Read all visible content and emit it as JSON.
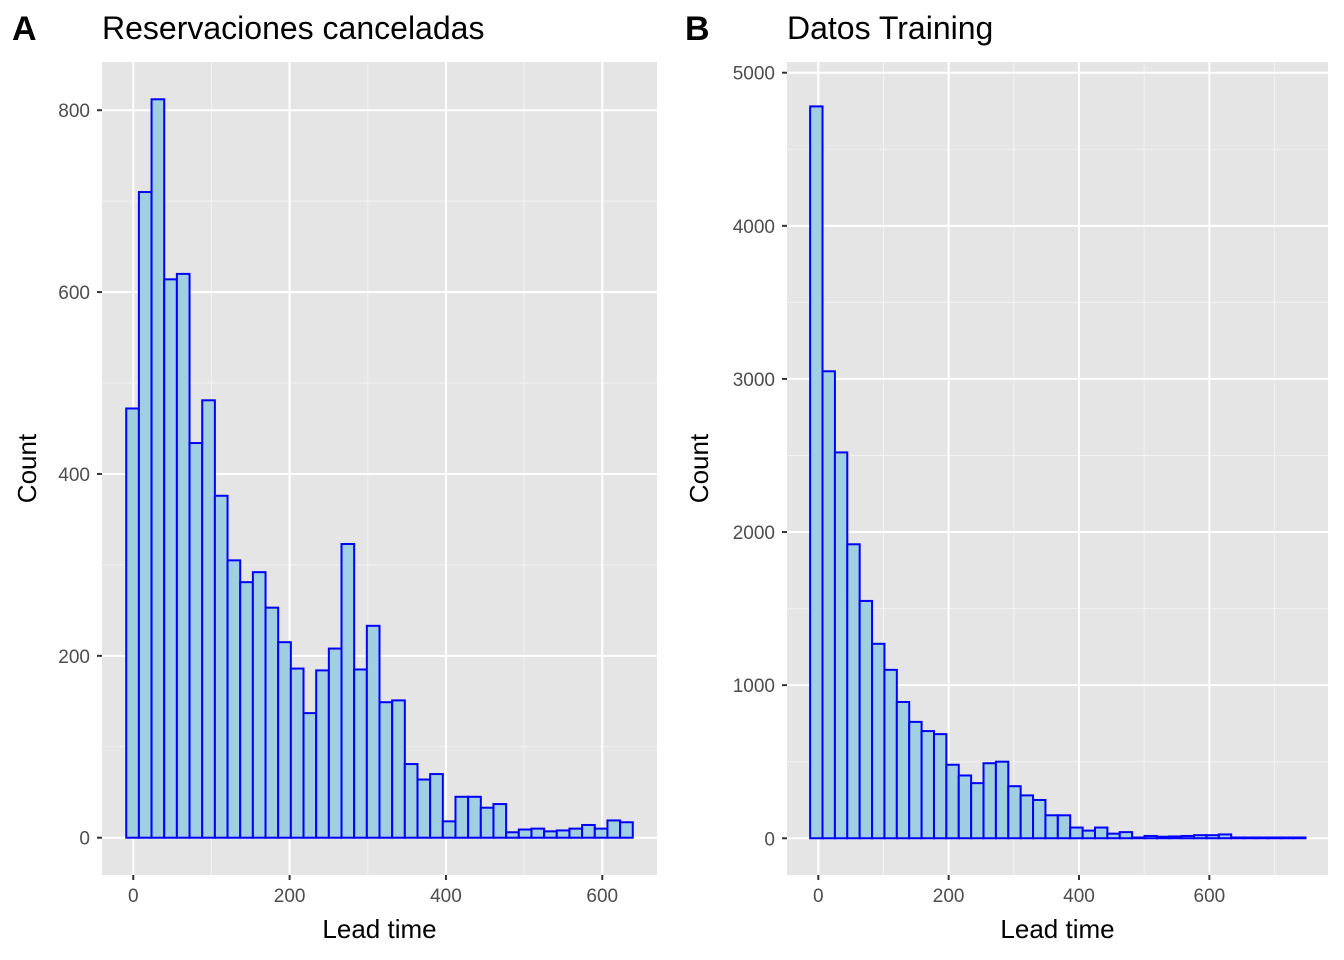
{
  "chart_data": [
    {
      "type": "bar",
      "tag": "A",
      "title": "Reservaciones canceladas",
      "xlabel": "Lead time",
      "ylabel": "Count",
      "xlim": [
        -40,
        670
      ],
      "ylim": [
        -41,
        853
      ],
      "xticks": [
        0,
        200,
        400,
        600
      ],
      "yticks": [
        0,
        200,
        400,
        600,
        800
      ],
      "bin_start": -9,
      "bin_width": 16.2,
      "values": [
        472,
        710,
        812,
        614,
        620,
        434,
        481,
        376,
        305,
        281,
        292,
        253,
        215,
        186,
        137,
        184,
        208,
        323,
        185,
        233,
        149,
        151,
        81,
        64,
        70,
        18,
        45,
        45,
        33,
        37,
        6,
        9,
        10,
        7,
        8,
        10,
        14,
        10,
        19,
        17
      ],
      "fill": "#9fcfe0",
      "stroke": "#0000ff",
      "grid": true
    },
    {
      "type": "bar",
      "tag": "B",
      "title": "Datos Training",
      "xlabel": "Lead time",
      "ylabel": "Count",
      "xlim": [
        -48,
        782
      ],
      "ylim": [
        -240,
        5070
      ],
      "xticks": [
        0,
        200,
        400,
        600
      ],
      "yticks": [
        0,
        1000,
        2000,
        3000,
        4000,
        5000
      ],
      "bin_start": -12.5,
      "bin_width": 19,
      "values": [
        4780,
        3050,
        2520,
        1920,
        1550,
        1270,
        1100,
        890,
        760,
        700,
        680,
        480,
        410,
        360,
        490,
        500,
        340,
        280,
        250,
        150,
        150,
        70,
        50,
        70,
        30,
        40,
        5,
        15,
        10,
        12,
        15,
        20,
        20,
        25,
        5,
        5,
        5,
        5,
        5,
        5
      ],
      "fill": "#9fcfe0",
      "stroke": "#0000ff",
      "grid": true
    }
  ]
}
